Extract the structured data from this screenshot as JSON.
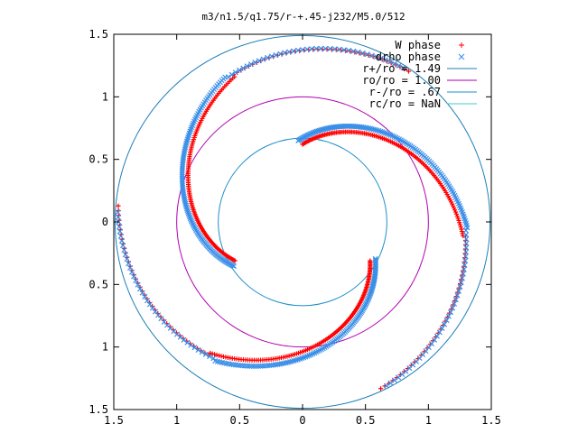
{
  "chart_data": {
    "type": "scatter",
    "title": "m3/n1.5/q1.75/r-+.45-j232/M5.0/512",
    "xlabel": "",
    "ylabel": "",
    "xlim": [
      -1.5,
      1.5
    ],
    "ylim": [
      -1.5,
      1.5
    ],
    "x_tick_labels": [
      "1.5",
      "1",
      "0.5",
      "0",
      "0.5",
      "1",
      "1.5"
    ],
    "x_tick_values": [
      -1.5,
      -1,
      -0.5,
      0,
      0.5,
      1,
      1.5
    ],
    "y_tick_labels": [
      "1.5",
      "1",
      "0.5",
      "0",
      "0.5",
      "1",
      "1.5"
    ],
    "y_tick_values": [
      1.5,
      1,
      0.5,
      0,
      -0.5,
      -1,
      -1.5
    ],
    "grid": false,
    "legend_position": "top-right",
    "series": [
      {
        "name": "W phase",
        "marker": "+",
        "color": "#ff0000",
        "kind": "spiral-points",
        "phase": 0.0
      },
      {
        "name": "drho phase",
        "marker": "x",
        "color": "#3a8fe8",
        "kind": "spiral-points",
        "phase": 0.06
      },
      {
        "name": "r+/ro = 1.49",
        "kind": "circle",
        "radius": 1.49,
        "color": "#1f7fb8"
      },
      {
        "name": "ro/ro = 1.00",
        "kind": "circle",
        "radius": 1.0,
        "color": "#b000b0"
      },
      {
        "name": "r-/ro = .67",
        "kind": "circle",
        "radius": 0.67,
        "color": "#1f8fc8"
      },
      {
        "name": "rc/ro = NaN",
        "kind": "circle",
        "radius": null,
        "color": "#40c8c8"
      }
    ]
  }
}
